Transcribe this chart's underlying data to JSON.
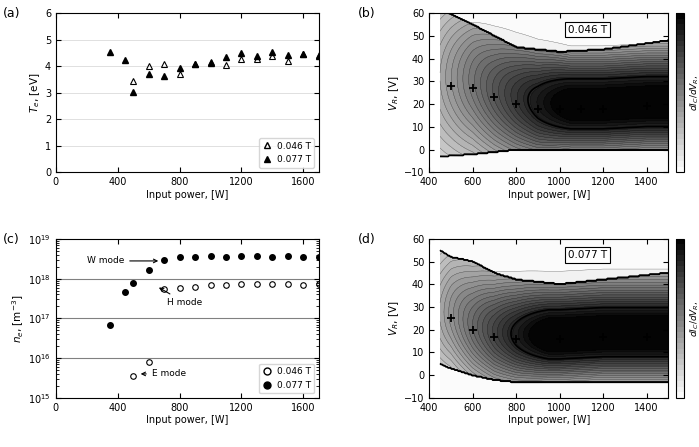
{
  "panel_a_label": "(a)",
  "panel_b_label": "(b)",
  "panel_c_label": "(c)",
  "panel_d_label": "(d)",
  "Te_open": {
    "power": [
      500,
      600,
      700,
      800,
      900,
      1000,
      1100,
      1200,
      1300,
      1400,
      1500,
      1600,
      1700
    ],
    "Te": [
      3.43,
      4.02,
      4.08,
      3.73,
      4.1,
      4.17,
      4.05,
      4.28,
      4.27,
      4.38,
      4.22,
      4.47,
      4.42
    ]
  },
  "Te_solid": {
    "power": [
      350,
      450,
      500,
      600,
      700,
      800,
      900,
      1000,
      1100,
      1200,
      1300,
      1400,
      1500,
      1600,
      1700
    ],
    "Te": [
      4.53,
      4.25,
      3.03,
      3.72,
      3.62,
      3.93,
      4.08,
      4.11,
      4.35,
      4.5,
      4.38,
      4.55,
      4.43,
      4.48,
      4.41
    ]
  },
  "ne_open": {
    "power": [
      700,
      800,
      900,
      1000,
      1100,
      1200,
      1300,
      1400,
      1500,
      1600,
      1700
    ],
    "ne": [
      5.5e+17,
      5.8e+17,
      6.2e+17,
      6.8e+17,
      7e+17,
      7.2e+17,
      7.3e+17,
      7.2e+17,
      7.4e+17,
      7.1e+17,
      7.5e+17
    ]
  },
  "ne_open_low": {
    "power": [
      500,
      600
    ],
    "ne": [
      3500000000000000.0,
      8000000000000000.0
    ]
  },
  "ne_solid": {
    "power": [
      350,
      450,
      500,
      600,
      700,
      800,
      900,
      1000,
      1100,
      1200,
      1300,
      1400,
      1500,
      1600,
      1700
    ],
    "ne": [
      6.8e+16,
      4.5e+17,
      7.8e+17,
      1.7e+18,
      3e+18,
      3.5e+18,
      3.5e+18,
      3.8e+18,
      3.5e+18,
      3.8e+18,
      3.7e+18,
      3.5e+18,
      3.8e+18,
      3.6e+18,
      3.5e+18
    ]
  },
  "contour_b_plus_x": [
    500,
    600,
    700,
    800,
    900,
    1000,
    1100,
    1200,
    1400
  ],
  "contour_b_plus_y": [
    28,
    27,
    23,
    20,
    18,
    18,
    18,
    18,
    19
  ],
  "contour_d_plus_x": [
    500,
    600,
    700,
    800,
    1000,
    1200,
    1400
  ],
  "contour_d_plus_y": [
    25,
    20,
    17,
    16,
    16,
    17,
    17
  ],
  "ylim_a": [
    0,
    6
  ],
  "yticks_a": [
    0,
    1,
    2,
    3,
    4,
    5,
    6
  ],
  "xlim_a": [
    0,
    1700
  ],
  "xticks_a": [
    0,
    400,
    800,
    1200,
    1600
  ],
  "ylim_c": [
    1000000000000000.0,
    1e+19
  ],
  "xlim_c": [
    0,
    1700
  ],
  "xticks_c": [
    0,
    400,
    800,
    1200,
    1600
  ],
  "xlim_b": [
    400,
    1500
  ],
  "xticks_b": [
    400,
    600,
    800,
    1000,
    1200,
    1400
  ],
  "ylim_b": [
    -10,
    60
  ],
  "yticks_b": [
    -10,
    0,
    10,
    20,
    30,
    40,
    50,
    60
  ],
  "xlim_d": [
    400,
    1500
  ],
  "xticks_d": [
    400,
    600,
    800,
    1000,
    1200,
    1400
  ],
  "ylim_d": [
    -10,
    60
  ],
  "yticks_d": [
    -10,
    0,
    10,
    20,
    30,
    40,
    50,
    60
  ],
  "contour_b_box_label": "0.046 T",
  "contour_d_box_label": "0.077 T"
}
